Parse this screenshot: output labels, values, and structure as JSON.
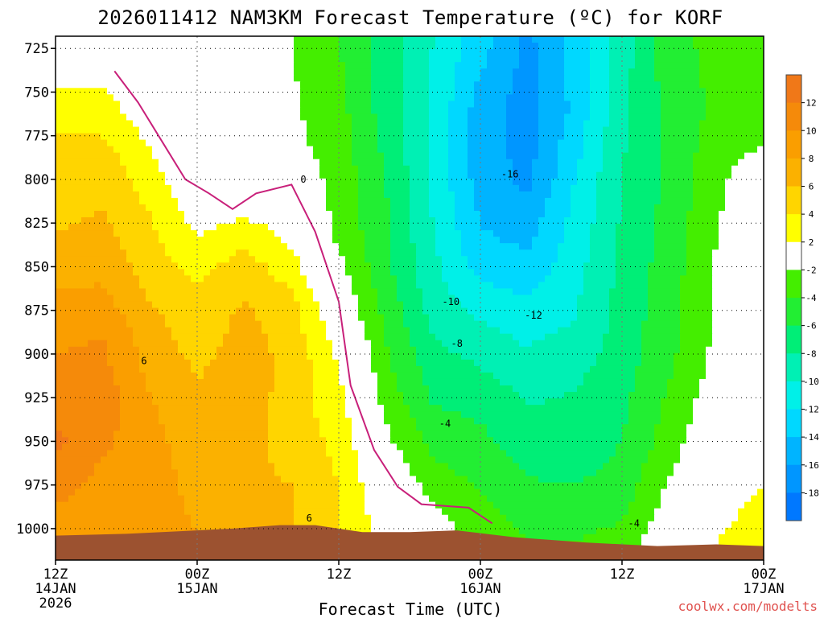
{
  "chart_data": {
    "type": "heatmap",
    "title": "2026011412 NAM3KM Forecast Temperature (ºC) for KORF",
    "xlabel": "Forecast Time (UTC)",
    "ylabel": "",
    "x_ticks": [
      {
        "hour": 0,
        "lines": [
          "12Z",
          "14JAN",
          "2026"
        ]
      },
      {
        "hour": 12,
        "lines": [
          "00Z",
          "15JAN"
        ]
      },
      {
        "hour": 24,
        "lines": [
          "12Z"
        ]
      },
      {
        "hour": 36,
        "lines": [
          "00Z",
          "16JAN"
        ]
      },
      {
        "hour": 48,
        "lines": [
          "12Z"
        ]
      },
      {
        "hour": 60,
        "lines": [
          "00Z",
          "17JAN"
        ]
      }
    ],
    "xlim_hours": [
      0,
      60
    ],
    "y_ticks": [
      725,
      750,
      775,
      800,
      825,
      850,
      875,
      900,
      925,
      950,
      975,
      1000
    ],
    "ylim_hPa": [
      718,
      1018
    ],
    "y_inverted": true,
    "grid": true,
    "colorbar": {
      "placement": "right",
      "ticks": [
        12,
        10,
        8,
        6,
        4,
        2,
        -2,
        -4,
        -6,
        -8,
        -10,
        -12,
        -14,
        -16,
        -18
      ],
      "bins": [
        {
          "lo": 12,
          "hi": 14,
          "color": "#f07818"
        },
        {
          "lo": 10,
          "hi": 12,
          "color": "#f58a0a"
        },
        {
          "lo": 8,
          "hi": 10,
          "color": "#fa9e00"
        },
        {
          "lo": 6,
          "hi": 8,
          "color": "#fbb100"
        },
        {
          "lo": 4,
          "hi": 6,
          "color": "#ffd500"
        },
        {
          "lo": 2,
          "hi": 4,
          "color": "#ffff00"
        },
        {
          "lo": -2,
          "hi": 2,
          "color": "#ffffff"
        },
        {
          "lo": -4,
          "hi": -2,
          "color": "#44ee00"
        },
        {
          "lo": -6,
          "hi": -4,
          "color": "#22ee33"
        },
        {
          "lo": -8,
          "hi": -6,
          "color": "#00ee77"
        },
        {
          "lo": -10,
          "hi": -8,
          "color": "#00f0b4"
        },
        {
          "lo": -12,
          "hi": -10,
          "color": "#00f0e8"
        },
        {
          "lo": -14,
          "hi": -12,
          "color": "#00d8ff"
        },
        {
          "lo": -16,
          "hi": -14,
          "color": "#00b4ff"
        },
        {
          "lo": -18,
          "hi": -16,
          "color": "#0096ff"
        },
        {
          "lo": -20,
          "hi": -18,
          "color": "#0078ff"
        }
      ]
    },
    "contour_labels": [
      {
        "text": "0",
        "hour": 21,
        "p": 800
      },
      {
        "text": "6",
        "hour": 7.5,
        "p": 904
      },
      {
        "text": "6",
        "hour": 21.5,
        "p": 994
      },
      {
        "text": "-16",
        "hour": 38.5,
        "p": 797
      },
      {
        "text": "-10",
        "hour": 33.5,
        "p": 870
      },
      {
        "text": "-12",
        "hour": 40.5,
        "p": 878
      },
      {
        "text": "-8",
        "hour": 34,
        "p": 894
      },
      {
        "text": "-4",
        "hour": 33,
        "p": 940
      },
      {
        "text": "-4",
        "hour": 49,
        "p": 997
      }
    ],
    "surface_pressure_hPa": [
      {
        "hour": 0,
        "p": 1004
      },
      {
        "hour": 6,
        "p": 1003
      },
      {
        "hour": 12,
        "p": 1001
      },
      {
        "hour": 15,
        "p": 1000
      },
      {
        "hour": 19,
        "p": 998
      },
      {
        "hour": 22,
        "p": 998
      },
      {
        "hour": 26,
        "p": 1002
      },
      {
        "hour": 30,
        "p": 1002
      },
      {
        "hour": 34,
        "p": 1001
      },
      {
        "hour": 39,
        "p": 1005
      },
      {
        "hour": 45,
        "p": 1008
      },
      {
        "hour": 51,
        "p": 1010
      },
      {
        "hour": 56,
        "p": 1009
      },
      {
        "hour": 60,
        "p": 1010
      }
    ],
    "freezing_line": [
      {
        "hour": 5,
        "p": 738
      },
      {
        "hour": 7,
        "p": 756
      },
      {
        "hour": 9,
        "p": 778
      },
      {
        "hour": 11,
        "p": 800
      },
      {
        "hour": 13,
        "p": 808
      },
      {
        "hour": 15,
        "p": 817
      },
      {
        "hour": 17,
        "p": 808
      },
      {
        "hour": 20,
        "p": 803
      },
      {
        "hour": 22,
        "p": 830
      },
      {
        "hour": 24,
        "p": 870
      },
      {
        "hour": 25,
        "p": 918
      },
      {
        "hour": 27,
        "p": 955
      },
      {
        "hour": 29,
        "p": 976
      },
      {
        "hour": 31,
        "p": 986
      },
      {
        "hour": 35,
        "p": 988
      },
      {
        "hour": 37,
        "p": 997
      }
    ],
    "profiles": [
      {
        "hour": 0,
        "temps": [
          [
            718,
            -1
          ],
          [
            740,
            0
          ],
          [
            750,
            2.5
          ],
          [
            780,
            4.5
          ],
          [
            820,
            5.5
          ],
          [
            850,
            7
          ],
          [
            875,
            9
          ],
          [
            900,
            10
          ],
          [
            925,
            11
          ],
          [
            950,
            12.5
          ],
          [
            975,
            11
          ],
          [
            1000,
            9
          ],
          [
            1004,
            8
          ]
        ]
      },
      {
        "hour": 4,
        "temps": [
          [
            718,
            -1
          ],
          [
            735,
            1
          ],
          [
            760,
            3
          ],
          [
            790,
            5
          ],
          [
            830,
            6.5
          ],
          [
            860,
            8
          ],
          [
            890,
            10
          ],
          [
            920,
            11
          ],
          [
            950,
            10.5
          ],
          [
            980,
            9
          ],
          [
            1003,
            8
          ]
        ]
      },
      {
        "hour": 8,
        "temps": [
          [
            718,
            -1
          ],
          [
            760,
            0.5
          ],
          [
            790,
            2.5
          ],
          [
            820,
            4
          ],
          [
            850,
            5
          ],
          [
            880,
            6.5
          ],
          [
            910,
            7.5
          ],
          [
            940,
            8.5
          ],
          [
            970,
            9
          ],
          [
            1002,
            9.5
          ]
        ]
      },
      {
        "hour": 12,
        "temps": [
          [
            718,
            -2
          ],
          [
            780,
            -1
          ],
          [
            820,
            1
          ],
          [
            845,
            3
          ],
          [
            870,
            4.5
          ],
          [
            900,
            5.5
          ],
          [
            930,
            6.5
          ],
          [
            960,
            7
          ],
          [
            990,
            7.5
          ],
          [
            1001,
            8
          ]
        ]
      },
      {
        "hour": 16,
        "temps": [
          [
            718,
            -1
          ],
          [
            780,
            -1.5
          ],
          [
            810,
            0.5
          ],
          [
            830,
            3
          ],
          [
            850,
            5
          ],
          [
            880,
            6.5
          ],
          [
            920,
            7
          ],
          [
            960,
            6.5
          ],
          [
            998,
            6
          ]
        ]
      },
      {
        "hour": 20,
        "temps": [
          [
            718,
            -2
          ],
          [
            780,
            -1.5
          ],
          [
            810,
            0
          ],
          [
            840,
            2
          ],
          [
            870,
            4.5
          ],
          [
            900,
            5.5
          ],
          [
            940,
            5
          ],
          [
            975,
            6
          ],
          [
            998,
            6
          ]
        ]
      },
      {
        "hour": 24,
        "temps": [
          [
            718,
            -4
          ],
          [
            780,
            -3
          ],
          [
            830,
            -2.5
          ],
          [
            860,
            -1
          ],
          [
            890,
            1
          ],
          [
            920,
            2.5
          ],
          [
            950,
            3.5
          ],
          [
            980,
            4
          ],
          [
            1000,
            4
          ]
        ]
      },
      {
        "hour": 28,
        "temps": [
          [
            718,
            -7
          ],
          [
            760,
            -7
          ],
          [
            800,
            -6
          ],
          [
            850,
            -5.5
          ],
          [
            880,
            -4.5
          ],
          [
            920,
            -3
          ],
          [
            950,
            -1.5
          ],
          [
            980,
            0.5
          ],
          [
            1002,
            1
          ]
        ]
      },
      {
        "hour": 32,
        "temps": [
          [
            718,
            -10
          ],
          [
            780,
            -10.5
          ],
          [
            830,
            -10
          ],
          [
            870,
            -9
          ],
          [
            900,
            -7.5
          ],
          [
            930,
            -6
          ],
          [
            960,
            -4
          ],
          [
            985,
            -2
          ],
          [
            1002,
            -1
          ]
        ]
      },
      {
        "hour": 36,
        "temps": [
          [
            718,
            -13
          ],
          [
            760,
            -15
          ],
          [
            800,
            -15
          ],
          [
            840,
            -13.5
          ],
          [
            870,
            -11
          ],
          [
            900,
            -8.5
          ],
          [
            930,
            -6.5
          ],
          [
            960,
            -5
          ],
          [
            990,
            -3.5
          ],
          [
            1001,
            -3
          ]
        ]
      },
      {
        "hour": 40,
        "temps": [
          [
            718,
            -16.5
          ],
          [
            760,
            -17
          ],
          [
            800,
            -16.5
          ],
          [
            840,
            -14
          ],
          [
            880,
            -11
          ],
          [
            920,
            -8.5
          ],
          [
            950,
            -7
          ],
          [
            980,
            -5.5
          ],
          [
            1005,
            -4
          ]
        ]
      },
      {
        "hour": 44,
        "temps": [
          [
            718,
            -13
          ],
          [
            760,
            -13.5
          ],
          [
            800,
            -12
          ],
          [
            840,
            -11
          ],
          [
            880,
            -10
          ],
          [
            920,
            -8
          ],
          [
            960,
            -7
          ],
          [
            990,
            -5
          ],
          [
            1008,
            -4
          ]
        ]
      },
      {
        "hour": 48,
        "temps": [
          [
            718,
            -9
          ],
          [
            760,
            -8.5
          ],
          [
            800,
            -8
          ],
          [
            850,
            -7.5
          ],
          [
            900,
            -7
          ],
          [
            950,
            -6
          ],
          [
            990,
            -4.5
          ],
          [
            1010,
            -3
          ]
        ]
      },
      {
        "hour": 52,
        "temps": [
          [
            718,
            -4.5
          ],
          [
            760,
            -5.5
          ],
          [
            800,
            -5.5
          ],
          [
            850,
            -5
          ],
          [
            900,
            -4.5
          ],
          [
            950,
            -3
          ],
          [
            990,
            -1
          ],
          [
            1010,
            0
          ]
        ]
      },
      {
        "hour": 56,
        "temps": [
          [
            718,
            -3.5
          ],
          [
            760,
            -3.5
          ],
          [
            800,
            -2.5
          ],
          [
            850,
            -1.8
          ],
          [
            900,
            -1.5
          ],
          [
            950,
            0
          ],
          [
            990,
            1.5
          ],
          [
            1009,
            2
          ]
        ]
      },
      {
        "hour": 60,
        "temps": [
          [
            718,
            -3
          ],
          [
            760,
            -3
          ],
          [
            780,
            -2
          ],
          [
            800,
            -0.5
          ],
          [
            850,
            0.5
          ],
          [
            900,
            0.5
          ],
          [
            950,
            1
          ],
          [
            990,
            2.5
          ],
          [
            1010,
            3
          ]
        ]
      }
    ],
    "colors": {
      "ground": "#9c5230",
      "freezing_line": "#c8207a",
      "grid": "#777777"
    }
  },
  "credit": "coolwx.com/modelts"
}
